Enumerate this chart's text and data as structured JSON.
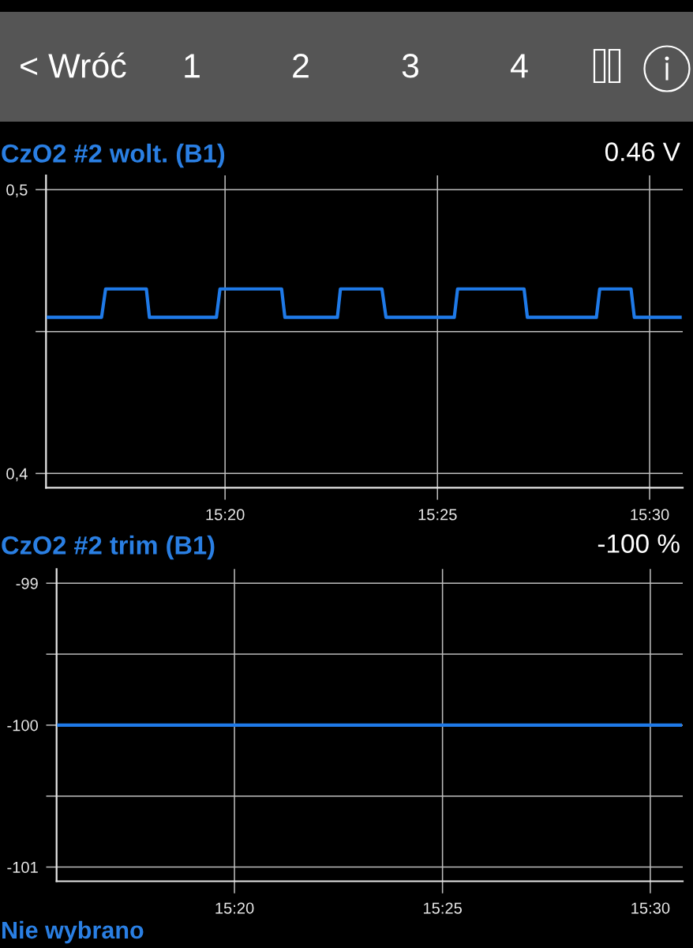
{
  "chart_data": [
    {
      "type": "line",
      "title": "CzO2 #2 wolt. (B1)",
      "subtitle": "0.46 V",
      "annotations": [
        "< Wróć",
        "1",
        "2",
        "3",
        "4"
      ],
      "x": [
        15.2632,
        15.2848,
        15.2864,
        15.3024,
        15.3036,
        15.3299,
        15.3313,
        15.3555,
        15.3568,
        15.3774,
        15.3786,
        15.3949,
        15.3965,
        15.4233,
        15.4246,
        15.4507,
        15.452,
        15.4791,
        15.4804,
        15.4927,
        15.494,
        15.5126
      ],
      "series": [
        {
          "color": "#1f7ae8",
          "values": [
            0.455,
            0.455,
            0.465,
            0.465,
            0.455,
            0.455,
            0.465,
            0.465,
            0.455,
            0.455,
            0.465,
            0.465,
            0.455,
            0.455,
            0.465,
            0.465,
            0.455,
            0.455,
            0.465,
            0.465,
            0.455,
            0.455
          ]
        }
      ],
      "xlim": [
        15.263,
        15.513
      ],
      "xticks": [
        {
          "value": 15.3333,
          "label": "15:20"
        },
        {
          "value": 15.4167,
          "label": "15:25"
        },
        {
          "value": 15.5,
          "label": "15:30"
        }
      ],
      "ylim": [
        0.395,
        0.505
      ],
      "yticks": [
        {
          "value": 0.4,
          "label": "0,4"
        },
        {
          "value": 0.45,
          "label": null
        },
        {
          "value": 0.5,
          "label": "0,5"
        }
      ],
      "grid": true
    },
    {
      "type": "line",
      "title": "CzO2 #2 trim (B1)",
      "subtitle": "-100 %",
      "annotations": [
        "Nie wybrano"
      ],
      "x": [
        15.2622,
        15.5127
      ],
      "series": [
        {
          "color": "#1f7ae8",
          "values": [
            -100,
            -100
          ]
        }
      ],
      "xlim": [
        15.262,
        15.513
      ],
      "xticks": [
        {
          "value": 15.3333,
          "label": "15:20"
        },
        {
          "value": 15.4167,
          "label": "15:25"
        },
        {
          "value": 15.5,
          "label": "15:30"
        }
      ],
      "ylim": [
        -101.1,
        -98.9
      ],
      "yticks": [
        -101,
        {
          "value": -100.5,
          "label": null
        },
        -100,
        {
          "value": -99.5,
          "label": null
        },
        -99
      ],
      "grid": true
    }
  ]
}
